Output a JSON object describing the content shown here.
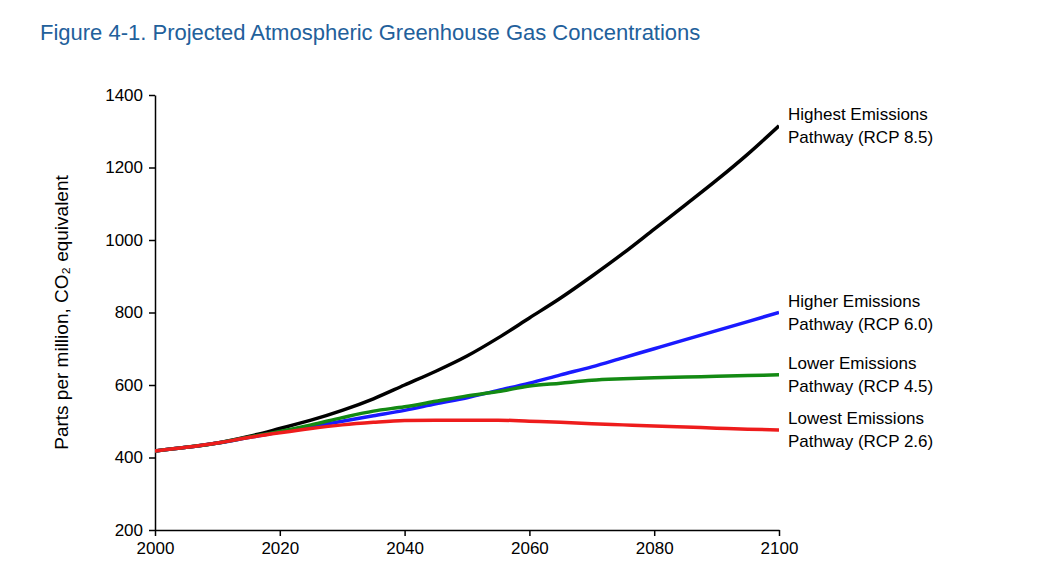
{
  "chart_data": {
    "type": "line",
    "title": "Figure 4-1. Projected Atmospheric Greenhouse Gas Concentrations",
    "y_label": "Parts per million, CO₂ equivalent",
    "x": [
      2000,
      2005,
      2010,
      2015,
      2020,
      2025,
      2030,
      2035,
      2040,
      2045,
      2050,
      2055,
      2060,
      2065,
      2070,
      2075,
      2080,
      2085,
      2090,
      2095,
      2100
    ],
    "series": [
      {
        "name": "Highest Emissions Pathway (RCP 8.5)",
        "color": "#000000",
        "values": [
          418,
          428,
          440,
          458,
          480,
          503,
          530,
          562,
          600,
          638,
          680,
          730,
          785,
          840,
          900,
          963,
          1030,
          1097,
          1165,
          1237,
          1315
        ]
      },
      {
        "name": "Higher Emissions Pathway (RCP 6.0)",
        "color": "#1a1aff",
        "values": [
          418,
          428,
          440,
          455,
          470,
          485,
          500,
          515,
          530,
          548,
          565,
          585,
          605,
          628,
          650,
          675,
          700,
          725,
          750,
          775,
          800
        ]
      },
      {
        "name": "Lower Emissions Pathway (RCP 4.5)",
        "color": "#138a13",
        "values": [
          418,
          428,
          440,
          456,
          472,
          490,
          510,
          528,
          540,
          555,
          570,
          582,
          597,
          605,
          613,
          617,
          620,
          622,
          624,
          626,
          628
        ]
      },
      {
        "name": "Lowest Emissions Pathway (RCP 2.6)",
        "color": "#ee1c1c",
        "values": [
          418,
          428,
          440,
          455,
          468,
          480,
          490,
          497,
          502,
          503,
          503,
          503,
          500,
          497,
          493,
          490,
          487,
          484,
          481,
          478,
          476
        ]
      }
    ],
    "xlim": [
      2000,
      2100
    ],
    "xticks": [
      2000,
      2020,
      2040,
      2060,
      2080,
      2100
    ],
    "ylim": [
      200,
      1400
    ],
    "yticks": [
      200,
      400,
      600,
      800,
      1000,
      1200,
      1400
    ],
    "grid": false
  }
}
